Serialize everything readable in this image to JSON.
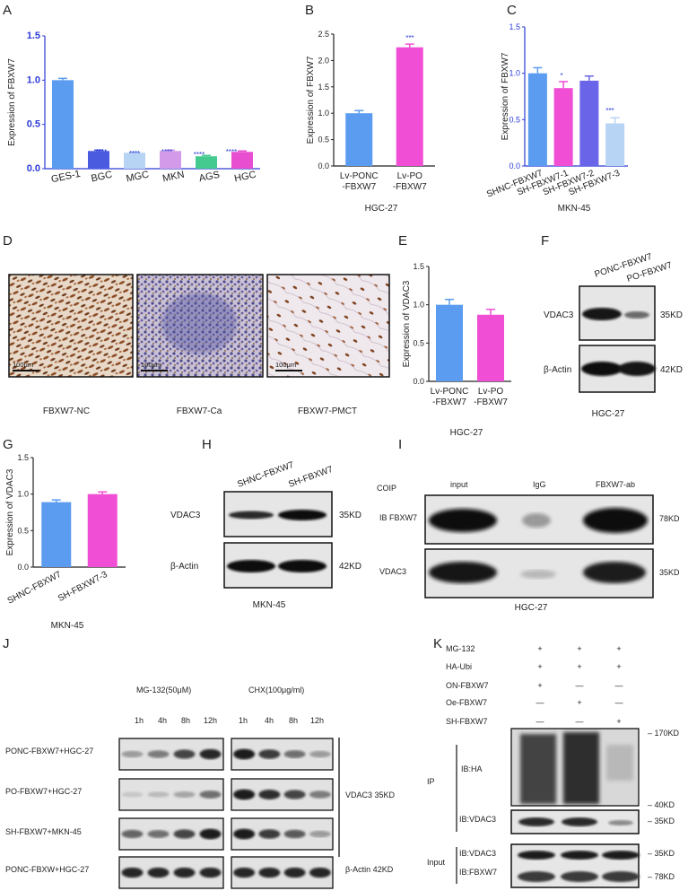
{
  "panels": {
    "A": {
      "letter": "A",
      "ylabel": "Expression of FBXW7",
      "stars": [
        "",
        "****",
        "****",
        "****",
        "****",
        "****"
      ]
    },
    "B": {
      "letter": "B",
      "ylabel": "Expression of FBXW7",
      "cell": "HGC-27",
      "stars": [
        "",
        "***"
      ],
      "xlabels": [
        [
          "Lv-PONC",
          "-FBXW7"
        ],
        [
          "Lv-PO",
          "-FBXW7"
        ]
      ]
    },
    "C": {
      "letter": "C",
      "ylabel": "Expression of FBXW7",
      "cell": "MKN-45",
      "stars": [
        "",
        "*",
        "",
        "***"
      ]
    },
    "D": {
      "letter": "D",
      "labels": [
        "FBXW7-NC",
        "FBXW7-Ca",
        "FBXW7-PMCT"
      ],
      "scale": "100μm"
    },
    "E": {
      "letter": "E",
      "ylabel": "Expression of VDAC3",
      "cell": "HGC-27",
      "xlabels": [
        [
          "Lv-PONC",
          "-FBXW7"
        ],
        [
          "Lv-PO",
          "-FBXW7"
        ]
      ]
    },
    "F": {
      "letter": "F",
      "lanes": [
        "PONC-FBXW7",
        "PO-FBXW7"
      ],
      "rows": [
        "VDAC3",
        "β-Actin"
      ],
      "kd": [
        "35KD",
        "42KD"
      ],
      "cell": "HGC-27"
    },
    "G": {
      "letter": "G",
      "ylabel": "Expression of VDAC3",
      "cell": "MKN-45"
    },
    "H": {
      "letter": "H",
      "lanes": [
        "SHNC-FBXW7",
        "SH-FBXW7"
      ],
      "rows": [
        "VDAC3",
        "β-Actin"
      ],
      "kd": [
        "35KD",
        "42KD"
      ],
      "cell": "MKN-45"
    },
    "I": {
      "letter": "I",
      "coip": "COIP",
      "cols": [
        "input",
        "IgG",
        "FBXW7-ab"
      ],
      "rows": [
        "IB FBXW7",
        "VDAC3"
      ],
      "kd": [
        "78KD",
        "35KD"
      ],
      "cell": "HGC-27"
    },
    "J": {
      "letter": "J",
      "mg": "MG-132(50μM)",
      "chx": "CHX(100μg/ml)",
      "times": [
        "1h",
        "4h",
        "8h",
        "12h",
        "1h",
        "4h",
        "8h",
        "12h"
      ],
      "rows": [
        "PONC-FBXW7+HGC-27",
        "PO-FBXW7+HGC-27",
        "SH-FBXW7+MKN-45",
        "PONC-FBXW+HGC-27"
      ],
      "vdac": "VDAC3 35KD",
      "actin": "β-Actin 42KD"
    },
    "K": {
      "letter": "K",
      "conds": [
        {
          "name": "MG-132",
          "marks": [
            "+",
            "+",
            "+"
          ]
        },
        {
          "name": "HA-Ubi",
          "marks": [
            "+",
            "+",
            "+"
          ]
        },
        {
          "name": "ON-FBXW7",
          "marks": [
            "+",
            "—",
            "—"
          ]
        },
        {
          "name": "Oe-FBXW7",
          "marks": [
            "—",
            "+",
            "—"
          ]
        },
        {
          "name": "SH-FBXW7",
          "marks": [
            "—",
            "—",
            "+"
          ]
        }
      ],
      "ip": "IP",
      "ibha": "IB:HA",
      "ibvdac": "IB:VDAC3",
      "input": "Input",
      "ibvdac2": "IB:VDAC3",
      "ibfbxw7": "IB:FBXW7",
      "kd": [
        "– 170KD",
        "– 40KD",
        "– 35KD",
        "– 35KD",
        "– 78KD"
      ]
    }
  },
  "chart_data": [
    {
      "type": "bar",
      "panel": "A",
      "categories": [
        "GES-1",
        "BGC",
        "MGC",
        "MKN",
        "AGS",
        "HGC"
      ],
      "values": [
        1.0,
        0.2,
        0.18,
        0.2,
        0.14,
        0.19
      ],
      "errors": [
        0.02,
        0.01,
        0.01,
        0.01,
        0.01,
        0.01
      ],
      "colors": [
        "#5b9cf0",
        "#4a5be0",
        "#b8d4f4",
        "#d29ae8",
        "#44c98e",
        "#e84fd0"
      ],
      "yticks": [
        "0.0",
        "0.5",
        "1.0",
        "1.5"
      ],
      "ylim": [
        0,
        1.5
      ],
      "ylabel": "Expression of FBXW7"
    },
    {
      "type": "bar",
      "panel": "B",
      "categories": [
        "Lv-PONC -FBXW7",
        "Lv-PO -FBXW7"
      ],
      "values": [
        1.0,
        2.25
      ],
      "errors": [
        0.05,
        0.06
      ],
      "colors": [
        "#5b9cf0",
        "#f04ed4"
      ],
      "yticks": [
        "0.0",
        "0.5",
        "1.0",
        "1.5",
        "2.0",
        "2.5"
      ],
      "ylim": [
        0,
        2.5
      ],
      "ylabel": "Expression of FBXW7"
    },
    {
      "type": "bar",
      "panel": "C",
      "categories": [
        "SHNC-FBXW7",
        "SH-FBXW7-1",
        "SH-FBXW7-2",
        "SH-FBXW7-3"
      ],
      "values": [
        1.0,
        0.84,
        0.92,
        0.46
      ],
      "errors": [
        0.06,
        0.07,
        0.05,
        0.06
      ],
      "colors": [
        "#5b9cf0",
        "#f04ed4",
        "#6a64e8",
        "#b8d4f4"
      ],
      "yticks": [
        "0.0",
        "0.5",
        "1.0",
        "1.5"
      ],
      "ylim": [
        0,
        1.5
      ],
      "ylabel": "Expression of FBXW7"
    },
    {
      "type": "bar",
      "panel": "E",
      "categories": [
        "Lv-PONC -FBXW7",
        "Lv-PO -FBXW7"
      ],
      "values": [
        1.0,
        0.87
      ],
      "errors": [
        0.07,
        0.07
      ],
      "colors": [
        "#5b9cf0",
        "#f04ed4"
      ],
      "yticks": [
        "0.0",
        "0.5",
        "1.0",
        "1.5"
      ],
      "ylim": [
        0,
        1.5
      ],
      "ylabel": "Expression of VDAC3"
    },
    {
      "type": "bar",
      "panel": "G",
      "categories": [
        "SHNC-FBXW7",
        "SH-FBXW7-3"
      ],
      "values": [
        0.89,
        1.0
      ],
      "errors": [
        0.03,
        0.03
      ],
      "colors": [
        "#5b9cf0",
        "#f04ed4"
      ],
      "yticks": [
        "0.0",
        "0.5",
        "1.0",
        "1.5"
      ],
      "ylim": [
        0,
        1.5
      ],
      "ylabel": "Expression of VDAC3"
    }
  ]
}
